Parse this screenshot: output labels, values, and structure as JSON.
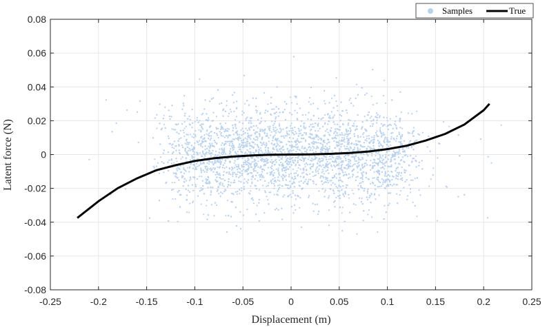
{
  "chart_data": {
    "type": "scatter",
    "xlabel": "Displacement (m)",
    "ylabel": "Latent force (N)",
    "xlim": [
      -0.25,
      0.25
    ],
    "ylim": [
      -0.08,
      0.08
    ],
    "grid": true,
    "legend_position": "top-right",
    "x_ticks": [
      "-0.25",
      "-0.2",
      "-0.15",
      "-0.1",
      "-0.05",
      "0",
      "0.05",
      "0.1",
      "0.15",
      "0.2",
      "0.25"
    ],
    "y_ticks": [
      "0.08",
      "0.06",
      "0.04",
      "0.02",
      "0",
      "-0.02",
      "-0.04",
      "-0.06",
      "-0.08"
    ],
    "colors": {
      "samples": "#b7d2f2",
      "true": "#000000",
      "grid": "#e6e6e6",
      "axis": "#262626"
    },
    "series": [
      {
        "name": "Samples",
        "kind": "scatter",
        "x_range": [
          -0.235,
          0.24
        ],
        "y_range": [
          -0.062,
          0.063
        ],
        "cluster_x_range": [
          -0.12,
          0.12
        ],
        "cluster_y_range": [
          -0.03,
          0.03
        ]
      },
      {
        "name": "True",
        "kind": "line",
        "x": [
          -0.222,
          -0.2,
          -0.18,
          -0.16,
          -0.14,
          -0.12,
          -0.1,
          -0.08,
          -0.06,
          -0.04,
          -0.02,
          0,
          0.02,
          0.04,
          0.06,
          0.08,
          0.1,
          0.12,
          0.14,
          0.16,
          0.18,
          0.2,
          0.206
        ],
        "y": [
          -0.0375,
          -0.0276,
          -0.0199,
          -0.0141,
          -0.0093,
          -0.0063,
          -0.0038,
          -0.0022,
          -0.0012,
          -0.0005,
          -0.0001,
          0,
          0.0001,
          0.0004,
          0.0009,
          0.0018,
          0.0032,
          0.0052,
          0.0083,
          0.0122,
          0.0178,
          0.0262,
          0.03
        ]
      }
    ]
  }
}
